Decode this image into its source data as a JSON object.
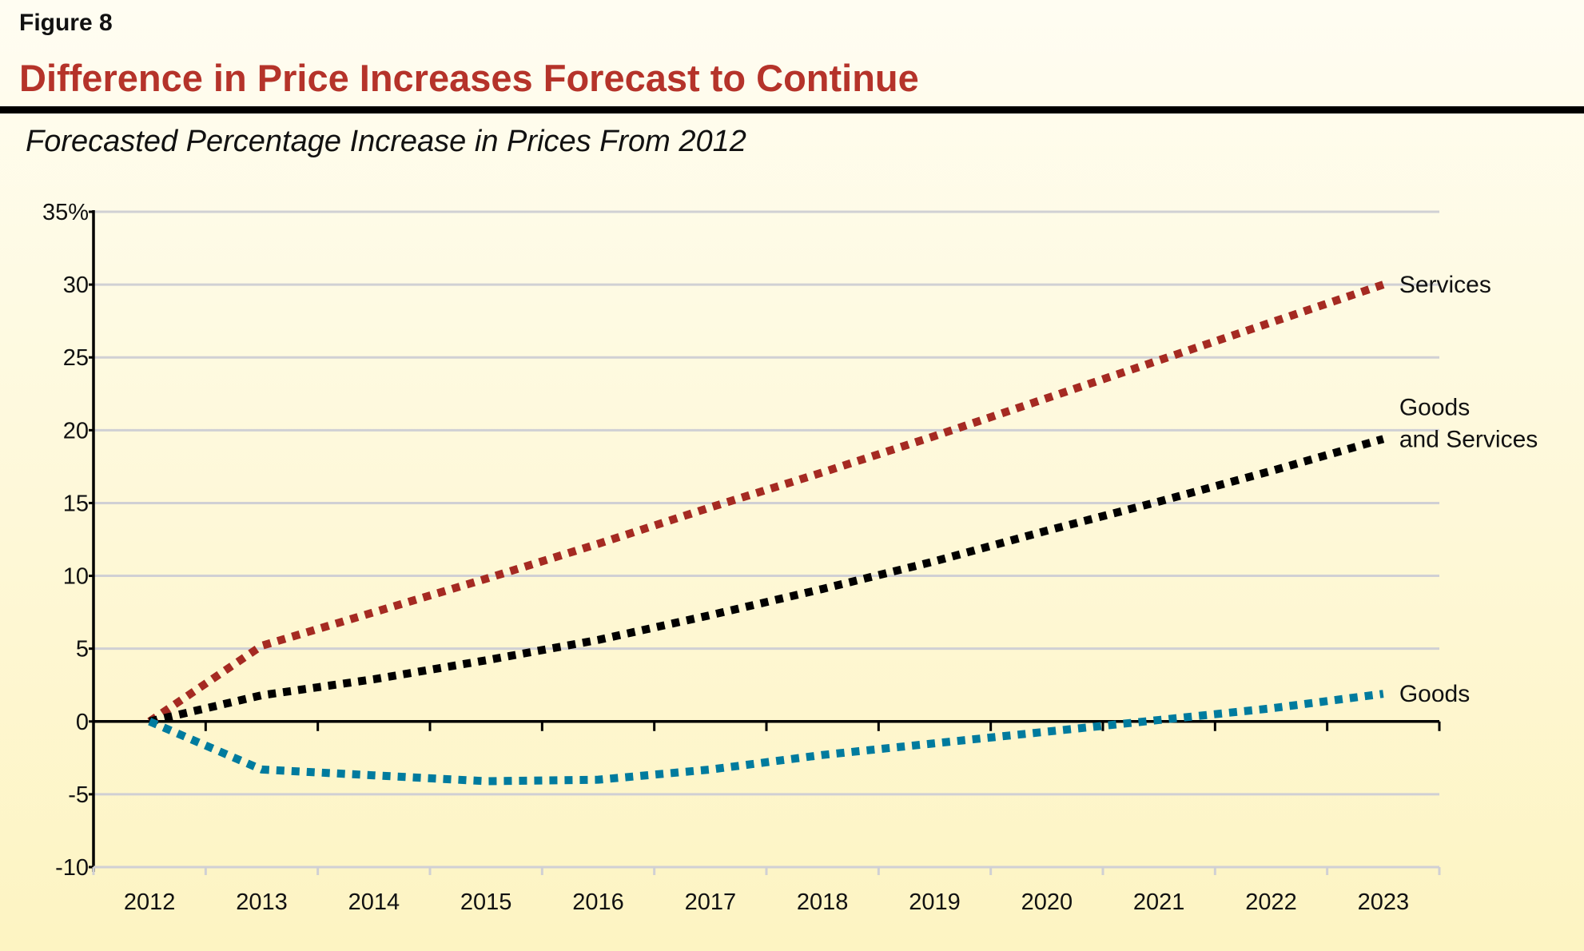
{
  "figure_label": "Figure 8",
  "title": "Difference in Price Increases Forecast to Continue",
  "subtitle": "Forecasted Percentage Increase in Prices From 2012",
  "chart_data": {
    "type": "line",
    "title": "Difference in Price Increases Forecast to Continue",
    "subtitle": "Forecasted Percentage Increase in Prices From 2012",
    "xlabel": "",
    "ylabel": "",
    "categories": [
      "2012",
      "2013",
      "2014",
      "2015",
      "2016",
      "2017",
      "2018",
      "2019",
      "2020",
      "2021",
      "2022",
      "2023"
    ],
    "ylim": [
      -10,
      35
    ],
    "yticks": [
      -10,
      -5,
      0,
      5,
      10,
      15,
      20,
      25,
      30,
      35
    ],
    "ytick_labels": [
      "-10",
      "-5",
      "0",
      "5",
      "10",
      "15",
      "20",
      "25",
      "30",
      "35%"
    ],
    "grid": true,
    "legend": "direct labels at line ends (right)",
    "series": [
      {
        "name": "Services",
        "label_lines": [
          "Services"
        ],
        "color": "#a52a22",
        "style": "dotted",
        "values": [
          0,
          5.2,
          7.5,
          9.8,
          12.2,
          14.7,
          17.1,
          19.6,
          22.2,
          24.8,
          27.4,
          30.0
        ]
      },
      {
        "name": "Goods and Services",
        "label_lines": [
          "Goods",
          "and Services"
        ],
        "color": "#000000",
        "style": "dotted",
        "values": [
          0,
          1.8,
          2.9,
          4.2,
          5.6,
          7.3,
          9.1,
          11.0,
          13.1,
          15.1,
          17.2,
          19.4
        ]
      },
      {
        "name": "Goods",
        "label_lines": [
          "Goods"
        ],
        "color": "#007b9e",
        "style": "dotted",
        "values": [
          0,
          -3.3,
          -3.7,
          -4.1,
          -4.0,
          -3.3,
          -2.3,
          -1.5,
          -0.7,
          0.1,
          0.9,
          1.9
        ]
      }
    ]
  },
  "colors": {
    "title": "#b5332a",
    "grid": "#d0d0d4",
    "axis": "#000000"
  }
}
